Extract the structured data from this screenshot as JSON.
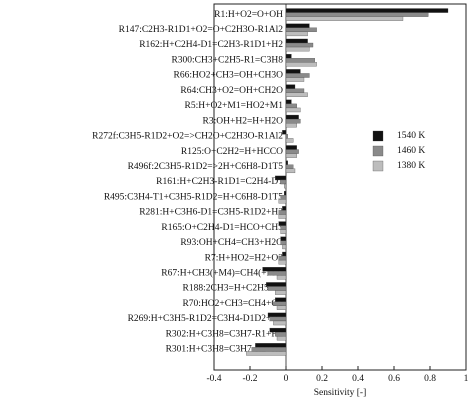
{
  "chart_data": {
    "type": "hbar",
    "xlabel": "Sensitivity [-]",
    "categories": [
      "R1:H+O2=O+OH",
      "R147:C2H3-R1D1+O2=O+C2H3O-R1Al2",
      "R162:H+C2H4-D1=C2H3-R1D1+H2",
      "R300:CH3+C2H5-R1=C3H8",
      "R66:HO2+CH3=OH+CH3O",
      "R64:CH3+O2=OH+CH2O",
      "R5:H+O2+M1=HO2+M1",
      "R3:OH+H2=H+H2O",
      "R272f:C3H5-R1D2+O2=>CH2O+C2H3O-R1Al2",
      "R125:O+C2H2=H+HCCO",
      "R496f:2C3H5-R1D2=>2H+C6H8-D1T5",
      "R161:H+C2H3-R1D1=C2H4-D1",
      "R495:C3H4-T1+C3H5-R1D2=H+C6H8-D1T5",
      "R281:H+C3H6-D1=C3H5-R1D2+H2",
      "R165:O+C2H4-D1=HCO+CH3",
      "R93:OH+CH4=CH3+H2O",
      "R7:H+HO2=H2+O2",
      "R67:H+CH3(+M4)=CH4(+M4)",
      "R188:2CH3=H+C2H5-R1",
      "R70:HO2+CH3=CH4+O2",
      "R269:H+C3H5-R1D2=C3H4-D1D2+H2",
      "R302:H+C3H8=C3H7-R1+H2",
      "R301:H+C3H8=C3H7-R2+H2"
    ],
    "series": [
      {
        "name": "1540 K",
        "color": "#111111",
        "values": [
          0.9,
          0.13,
          0.12,
          0.03,
          0.08,
          0.05,
          0.03,
          0.07,
          -0.02,
          0.06,
          0.01,
          -0.06,
          -0.01,
          -0.02,
          -0.04,
          -0.03,
          -0.02,
          -0.13,
          -0.11,
          -0.06,
          -0.1,
          -0.09,
          -0.17
        ]
      },
      {
        "name": "1460 K",
        "color": "#8a8a8a",
        "values": [
          0.79,
          0.17,
          0.15,
          0.16,
          0.13,
          0.1,
          0.06,
          0.08,
          0.01,
          0.07,
          0.04,
          -0.03,
          -0.03,
          -0.04,
          -0.03,
          -0.03,
          -0.04,
          -0.1,
          -0.1,
          -0.07,
          -0.09,
          -0.06,
          -0.19
        ]
      },
      {
        "name": "1380 K",
        "color": "#bdbdbd",
        "values": [
          0.65,
          0.12,
          0.13,
          0.17,
          0.1,
          0.12,
          0.08,
          0.06,
          0.04,
          0.06,
          0.05,
          -0.01,
          -0.04,
          -0.04,
          -0.03,
          -0.02,
          -0.04,
          -0.05,
          -0.06,
          -0.05,
          -0.07,
          -0.05,
          -0.22
        ]
      }
    ],
    "xlim": [
      -0.4,
      1
    ],
    "xticks": [
      -0.4,
      -0.2,
      0,
      0.2,
      0.4,
      0.6,
      0.8,
      1
    ],
    "legend": "right"
  }
}
